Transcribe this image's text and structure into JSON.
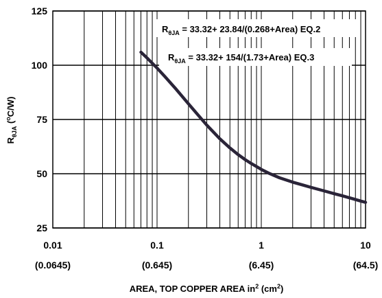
{
  "chart_data": {
    "type": "line",
    "x_scale": "log",
    "xlim": [
      0.01,
      10
    ],
    "ylim": [
      25,
      125
    ],
    "grid": true,
    "x_ticks": [
      {
        "value": 0.01,
        "label": "0.01",
        "label2": "(0.0645)"
      },
      {
        "value": 0.1,
        "label": "0.1",
        "label2": "(0.645)"
      },
      {
        "value": 1,
        "label": "1",
        "label2": "(6.45)"
      },
      {
        "value": 10,
        "label": "10",
        "label2": "(64.5)"
      }
    ],
    "y_ticks": [
      {
        "value": 25,
        "label": "25"
      },
      {
        "value": 50,
        "label": "50"
      },
      {
        "value": 75,
        "label": "75"
      },
      {
        "value": 100,
        "label": "100"
      },
      {
        "value": 125,
        "label": "125"
      }
    ],
    "xlabel": {
      "main": "AREA, TOP COPPER AREA in",
      "sup1": "2",
      "mid": " (cm",
      "sup2": "2",
      "end": ")"
    },
    "ylabel": {
      "main": "R",
      "sub": "θJA",
      "rest": " (",
      "sup": "o",
      "end": "C/W)"
    },
    "annotations": [
      {
        "main": "R",
        "sub": "θJA",
        "rest": " = 33.32+ 23.84/(0.268+Area) EQ.2"
      },
      {
        "main": "R",
        "sub": "θJA",
        "rest": " = 33.32+ 154/(1.73+Area) EQ.3"
      }
    ],
    "series": [
      {
        "x": [
          0.07,
          0.08,
          0.1,
          0.12,
          0.15,
          0.2,
          0.25,
          0.3,
          0.4,
          0.5,
          0.6,
          0.7,
          0.8,
          1.0,
          1.2,
          1.5,
          2.0,
          2.5,
          3.0,
          4.0,
          5.0,
          6.0,
          7.0,
          8.0,
          9.0,
          10.0
        ],
        "y": [
          106.0,
          103.4,
          98.7,
          94.6,
          89.3,
          82.2,
          76.8,
          72.4,
          66.1,
          61.9,
          58.8,
          56.5,
          54.7,
          52.0,
          50.1,
          48.1,
          46.1,
          44.8,
          43.7,
          42.1,
          40.8,
          39.8,
          38.9,
          38.1,
          37.4,
          36.8
        ],
        "color": "#2a2438"
      }
    ]
  }
}
